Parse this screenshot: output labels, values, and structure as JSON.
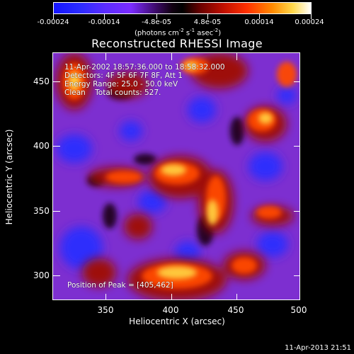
{
  "colorbar": {
    "tick_labels": [
      "-0.00024",
      "-0.00014",
      "-4.8e-05",
      "4.8e-05",
      "0.00014",
      "0.00024"
    ],
    "units_main": "(photons cm",
    "units_exp1": "-2",
    "units_s": " s",
    "units_exp2": "-1",
    "units_asec": " asec",
    "units_exp3": "-2",
    "units_close": ")"
  },
  "image": {
    "title": "Reconstructed RHESSI Image",
    "info_lines": [
      "11-Apr-2002 18:57:36.000 to 18:58:32.000",
      "Detectors: 4F 5F 6F 7F 8F, Att 1",
      "Energy Range: 25.0 - 50.0 keV",
      "Clean    Total counts: 527."
    ],
    "peak_text": "Position of Peak = [405,462]",
    "x_axis": {
      "label": "Heliocentric X (arcsec)",
      "ticks": [
        "350",
        "400",
        "450",
        "500"
      ]
    },
    "y_axis": {
      "label": "Heliocentric Y (arcsec)",
      "ticks": [
        "450",
        "400",
        "350",
        "300"
      ]
    },
    "x_range": [
      310,
      500
    ],
    "y_range": [
      280,
      470
    ]
  },
  "footer": {
    "date": "11-Apr-2013 21:51"
  },
  "colors": {
    "background": "#000000",
    "positive_low": "#8b0000",
    "positive_mid": "#ff4000",
    "positive_high": "#ffd050",
    "negative_low": "#8a2bd8",
    "negative_high": "#2233ff"
  }
}
